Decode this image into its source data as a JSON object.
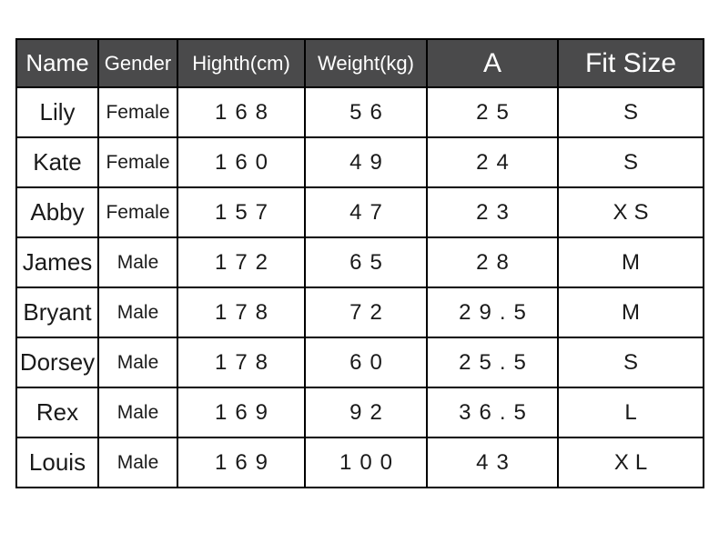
{
  "chart_data": {
    "type": "table",
    "title": "",
    "columns": [
      {
        "key": "name",
        "label": "Name"
      },
      {
        "key": "gender",
        "label": "Gender"
      },
      {
        "key": "height",
        "label": "Highth(cm)"
      },
      {
        "key": "weight",
        "label": "Weight(kg)"
      },
      {
        "key": "a",
        "label": "A"
      },
      {
        "key": "fit",
        "label": "Fit Size"
      }
    ],
    "rows": [
      {
        "name": "Lily",
        "gender": "Female",
        "height": "168",
        "weight": "56",
        "a": "25",
        "fit": "S"
      },
      {
        "name": "Kate",
        "gender": "Female",
        "height": "160",
        "weight": "49",
        "a": "24",
        "fit": "S"
      },
      {
        "name": "Abby",
        "gender": "Female",
        "height": "157",
        "weight": "47",
        "a": "23",
        "fit": "XS"
      },
      {
        "name": "James",
        "gender": "Male",
        "height": "172",
        "weight": "65",
        "a": "28",
        "fit": "M"
      },
      {
        "name": "Bryant",
        "gender": "Male",
        "height": "178",
        "weight": "72",
        "a": "29.5",
        "fit": "M"
      },
      {
        "name": "Dorsey",
        "gender": "Male",
        "height": "178",
        "weight": "60",
        "a": "25.5",
        "fit": "S"
      },
      {
        "name": "Rex",
        "gender": "Male",
        "height": "169",
        "weight": "92",
        "a": "36.5",
        "fit": "L"
      },
      {
        "name": "Louis",
        "gender": "Male",
        "height": "169",
        "weight": "100",
        "a": "43",
        "fit": "XL"
      }
    ],
    "layout": {
      "header_position": "top",
      "grid": true
    },
    "colors": {
      "header_bg": "#4a4a4b",
      "header_text": "#ffffff",
      "body_text": "#1a1a1a",
      "border": "#000000",
      "page_bg": "#ffffff"
    }
  }
}
